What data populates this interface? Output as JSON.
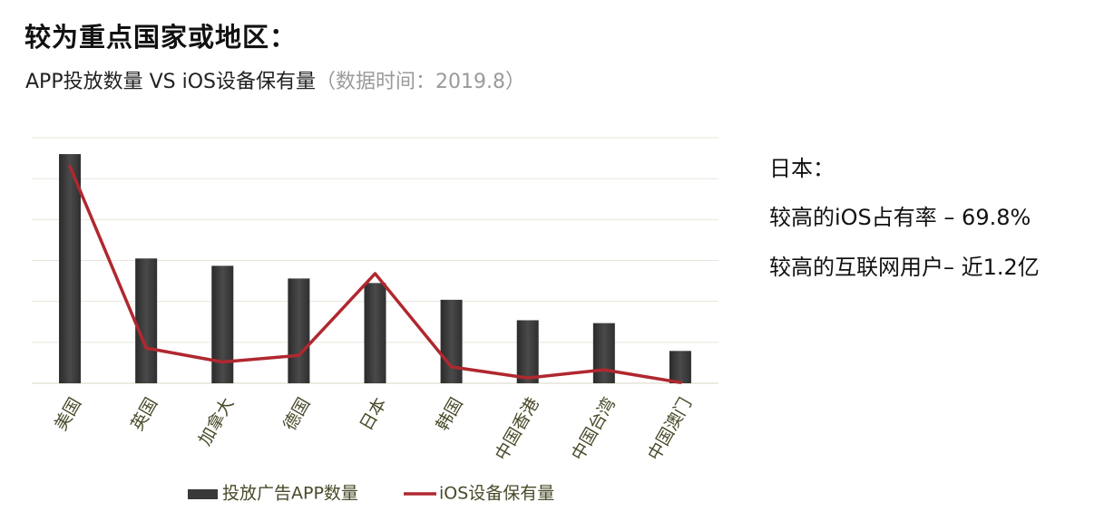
{
  "title": "较为重点国家或地区：",
  "subtitle": {
    "main": "APP投放数量 VS iOS设备保有量",
    "date": "（数据时间：2019.8）"
  },
  "side_panel": {
    "country": "日本：",
    "facts": [
      "较高的iOS占有率 – 69.8%",
      "较高的互联网用户– 近1.2亿"
    ]
  },
  "colors": {
    "bar": "#3a3a3a",
    "line": "#b0282f",
    "grid": "#e8e4da",
    "tick_text": "#4a4a2a"
  },
  "chart_data": {
    "type": "bar",
    "categories": [
      "美国",
      "英国",
      "加拿大",
      "德国",
      "日本",
      "韩国",
      "中国香港",
      "中国台湾",
      "中国澳门"
    ],
    "series": [
      {
        "name": "投放广告APP数量",
        "type": "bar",
        "values": [
          5.6,
          3.05,
          2.87,
          2.56,
          2.45,
          2.04,
          1.54,
          1.47,
          0.79
        ]
      },
      {
        "name": "iOS设备保有量",
        "type": "line",
        "values": [
          5.3,
          0.86,
          0.52,
          0.68,
          2.68,
          0.4,
          0.13,
          0.33,
          0.02
        ]
      }
    ],
    "ylim": [
      0,
      6
    ],
    "grid": true,
    "y_tick_labels_shown": false,
    "legend_position": "bottom"
  }
}
